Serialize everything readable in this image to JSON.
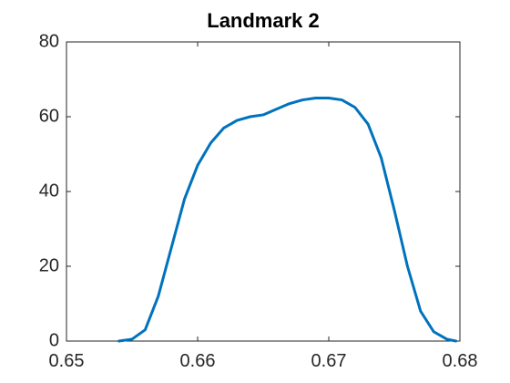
{
  "chart_data": {
    "type": "line",
    "title": "Landmark 2",
    "x": [
      0.654,
      0.655,
      0.656,
      0.657,
      0.658,
      0.659,
      0.66,
      0.661,
      0.662,
      0.663,
      0.664,
      0.665,
      0.666,
      0.667,
      0.668,
      0.669,
      0.67,
      0.671,
      0.672,
      0.673,
      0.674,
      0.675,
      0.676,
      0.677,
      0.678,
      0.679,
      0.6797
    ],
    "series": [
      {
        "name": "Landmark 2",
        "color": "#0072bd",
        "values": [
          0,
          0.5,
          3,
          12,
          25,
          38,
          47,
          53,
          57,
          59,
          60,
          60.5,
          62,
          63.5,
          64.5,
          65,
          65,
          64.5,
          62.5,
          58,
          49,
          35,
          20,
          8,
          2.5,
          0.5,
          0
        ]
      }
    ],
    "xlim": [
      0.65,
      0.68
    ],
    "xticks": [
      0.65,
      0.66,
      0.67,
      0.68
    ],
    "ylim": [
      0,
      80
    ],
    "yticks": [
      0,
      20,
      40,
      60,
      80
    ],
    "grid": false
  }
}
